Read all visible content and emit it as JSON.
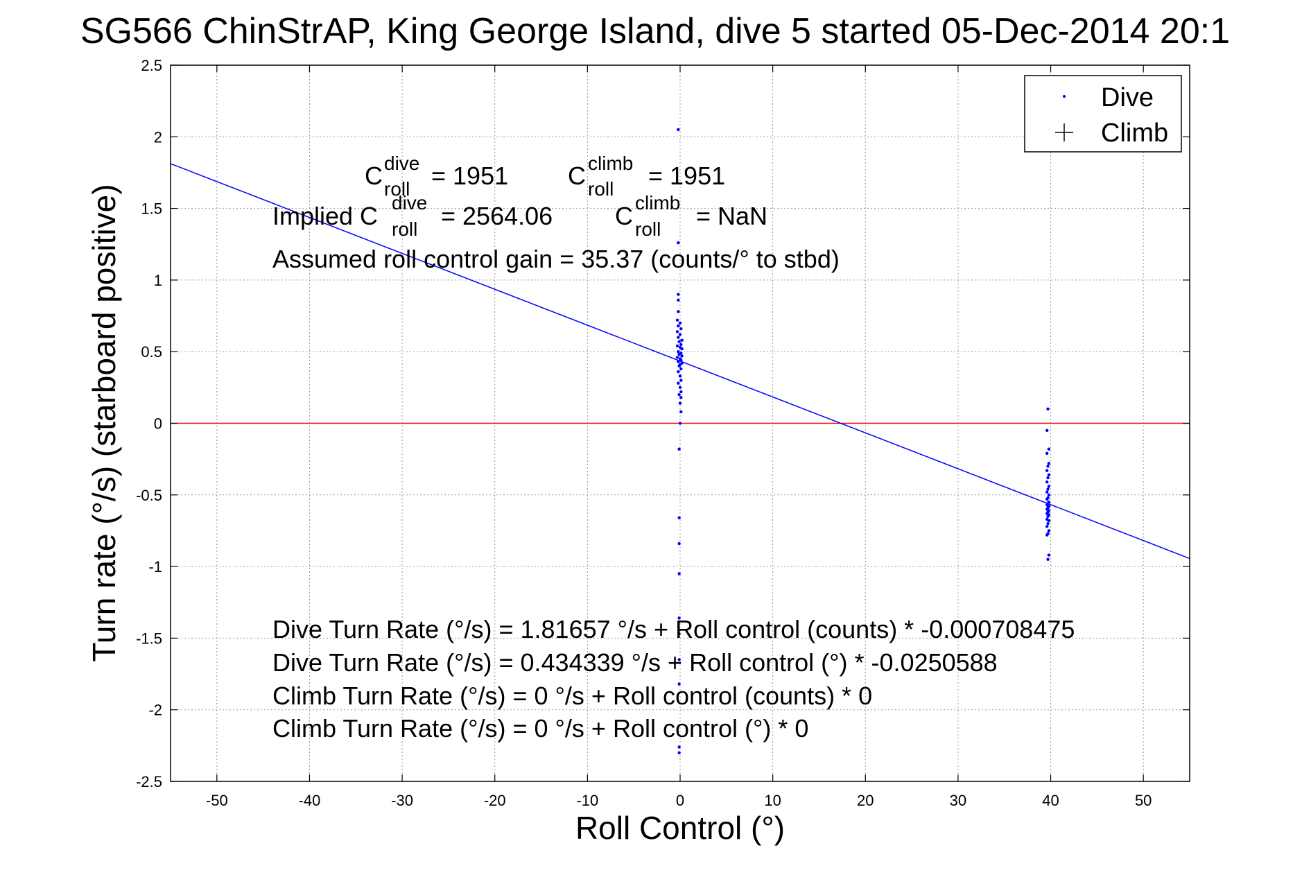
{
  "chart_data": {
    "type": "scatter",
    "title": "SG566 ChinStrAP, King George Island, dive 5 started 05-Dec-2014 20:1",
    "xlabel": "Roll Control (°)",
    "ylabel": "Turn rate (°/s) (starboard positive)",
    "xlim": [
      -55,
      55
    ],
    "ylim": [
      -2.5,
      2.5
    ],
    "xticks": [
      -50,
      -40,
      -30,
      -20,
      -10,
      0,
      10,
      20,
      30,
      40,
      50
    ],
    "yticks": [
      -2.5,
      -2,
      -1.5,
      -1,
      -0.5,
      0,
      0.5,
      1,
      1.5,
      2,
      2.5
    ],
    "grid": true,
    "legend_position": "top-right",
    "colors": {
      "dive": "#0000ff",
      "fit_line": "#0000ff",
      "zero_line": "#ff0000",
      "axes": "#000000",
      "grid": "#999999"
    },
    "series": [
      {
        "name": "Dive",
        "marker": "dot",
        "points": [
          [
            -0.2,
            2.05
          ],
          [
            -0.2,
            1.26
          ],
          [
            -0.2,
            0.9
          ],
          [
            -0.2,
            0.86
          ],
          [
            -0.2,
            0.78
          ],
          [
            -0.3,
            0.72
          ],
          [
            0.0,
            0.7
          ],
          [
            -0.2,
            0.68
          ],
          [
            0.1,
            0.66
          ],
          [
            -0.3,
            0.64
          ],
          [
            0.0,
            0.62
          ],
          [
            -0.2,
            0.6
          ],
          [
            0.2,
            0.58
          ],
          [
            -0.1,
            0.57
          ],
          [
            0.1,
            0.55
          ],
          [
            -0.3,
            0.54
          ],
          [
            0.0,
            0.53
          ],
          [
            0.2,
            0.52
          ],
          [
            -0.2,
            0.5
          ],
          [
            0.1,
            0.49
          ],
          [
            -0.1,
            0.48
          ],
          [
            0.2,
            0.47
          ],
          [
            -0.3,
            0.46
          ],
          [
            0.0,
            0.45
          ],
          [
            0.1,
            0.44
          ],
          [
            -0.2,
            0.43
          ],
          [
            0.2,
            0.42
          ],
          [
            0.0,
            0.41
          ],
          [
            -0.1,
            0.4
          ],
          [
            0.1,
            0.38
          ],
          [
            -0.2,
            0.36
          ],
          [
            0.0,
            0.33
          ],
          [
            0.1,
            0.3
          ],
          [
            -0.2,
            0.28
          ],
          [
            0.0,
            0.25
          ],
          [
            0.1,
            0.22
          ],
          [
            -0.1,
            0.2
          ],
          [
            0.1,
            0.18
          ],
          [
            0.0,
            0.14
          ],
          [
            0.1,
            0.08
          ],
          [
            0.0,
            0.0
          ],
          [
            -0.1,
            -0.18
          ],
          [
            -0.1,
            -0.66
          ],
          [
            -0.1,
            -0.84
          ],
          [
            -0.1,
            -1.05
          ],
          [
            -0.1,
            -1.36
          ],
          [
            -0.1,
            -1.47
          ],
          [
            -0.1,
            -1.65
          ],
          [
            -0.1,
            -1.82
          ],
          [
            -0.1,
            -2.26
          ],
          [
            -0.1,
            -2.3
          ],
          [
            39.7,
            0.1
          ],
          [
            39.6,
            -0.05
          ],
          [
            39.8,
            -0.18
          ],
          [
            39.6,
            -0.21
          ],
          [
            39.8,
            -0.28
          ],
          [
            39.7,
            -0.3
          ],
          [
            39.6,
            -0.33
          ],
          [
            39.8,
            -0.36
          ],
          [
            39.7,
            -0.38
          ],
          [
            39.6,
            -0.41
          ],
          [
            39.8,
            -0.44
          ],
          [
            39.7,
            -0.46
          ],
          [
            39.6,
            -0.48
          ],
          [
            39.8,
            -0.5
          ],
          [
            39.7,
            -0.52
          ],
          [
            39.6,
            -0.53
          ],
          [
            39.8,
            -0.55
          ],
          [
            39.7,
            -0.56
          ],
          [
            39.6,
            -0.57
          ],
          [
            39.8,
            -0.58
          ],
          [
            39.7,
            -0.59
          ],
          [
            39.6,
            -0.6
          ],
          [
            39.8,
            -0.61
          ],
          [
            39.7,
            -0.62
          ],
          [
            39.6,
            -0.63
          ],
          [
            39.8,
            -0.64
          ],
          [
            39.7,
            -0.65
          ],
          [
            39.6,
            -0.67
          ],
          [
            39.8,
            -0.68
          ],
          [
            39.7,
            -0.7
          ],
          [
            39.6,
            -0.72
          ],
          [
            39.8,
            -0.75
          ],
          [
            39.7,
            -0.77
          ],
          [
            39.6,
            -0.78
          ],
          [
            39.8,
            -0.92
          ],
          [
            39.7,
            -0.95
          ]
        ]
      },
      {
        "name": "Climb",
        "marker": "plus",
        "points": []
      }
    ],
    "fit_line": {
      "intercept": 0.434339,
      "slope": -0.0250588
    },
    "reference_line": {
      "y": 0
    },
    "annotations": {
      "c_dive_label": "C",
      "c_dive_sup": "dive",
      "c_dive_sub": "roll",
      "c_dive_value": "= 1951",
      "c_climb_label": "C",
      "c_climb_sup": "climb",
      "c_climb_sub": "roll",
      "c_climb_value": "= 1951",
      "implied_prefix": "Implied C",
      "implied_dive_sup": "dive",
      "implied_dive_sub": "roll",
      "implied_dive_value": "= 2564.06",
      "implied_climb_label": "C",
      "implied_climb_sup": "climb",
      "implied_climb_sub": "roll",
      "implied_climb_value": "= NaN",
      "gain": "Assumed roll control gain = 35.37 (counts/° to stbd)",
      "eq1": "Dive Turn Rate (°/s) = 1.81657 °/s + Roll control (counts) * -0.000708475",
      "eq2": "Dive Turn Rate (°/s) = 0.434339 °/s + Roll control (°) * -0.0250588",
      "eq3": "Climb Turn Rate (°/s) = 0 °/s + Roll control (counts) * 0",
      "eq4": "Climb Turn Rate (°/s) = 0 °/s + Roll control (°) * 0"
    }
  }
}
